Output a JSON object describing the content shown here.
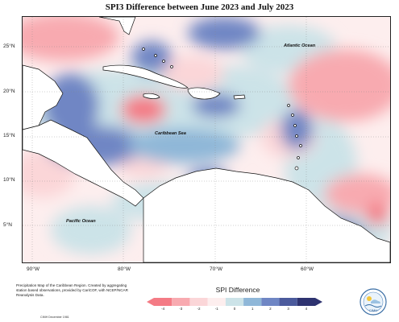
{
  "title": "SPI3 Difference between June 2023 and July 2023",
  "latitude_labels": [
    "25°N",
    "20°N",
    "15°N",
    "10°N",
    "5°N"
  ],
  "longitude_labels": [
    "90°W",
    "80°W",
    "70°W",
    "60°W"
  ],
  "place_labels": {
    "atlantic": "Atlantic Ocean",
    "caribbean": "Caribbean Sea",
    "pacific": "Pacific Ocean"
  },
  "footnote": "Precipitation Map of the Caribbean Region. Created by aggregating station based observations, provided by CariCOF, with NCEP/NCAR Reanalysis Data.",
  "credit": "CIMH December 1981",
  "legend": {
    "title": "SPI Difference",
    "ticks": [
      "-4",
      "-3",
      "-2",
      "-1",
      "0",
      "1",
      "2",
      "3",
      "4"
    ],
    "colors": [
      "#f47b85",
      "#f8aab0",
      "#fbd6d8",
      "#fdeeee",
      "#cce3e8",
      "#8fb7d8",
      "#6f86c4",
      "#4b5a9c",
      "#2e3370"
    ]
  },
  "logo": {
    "label": "CIMH",
    "icon": "cimh-logo-icon"
  }
}
